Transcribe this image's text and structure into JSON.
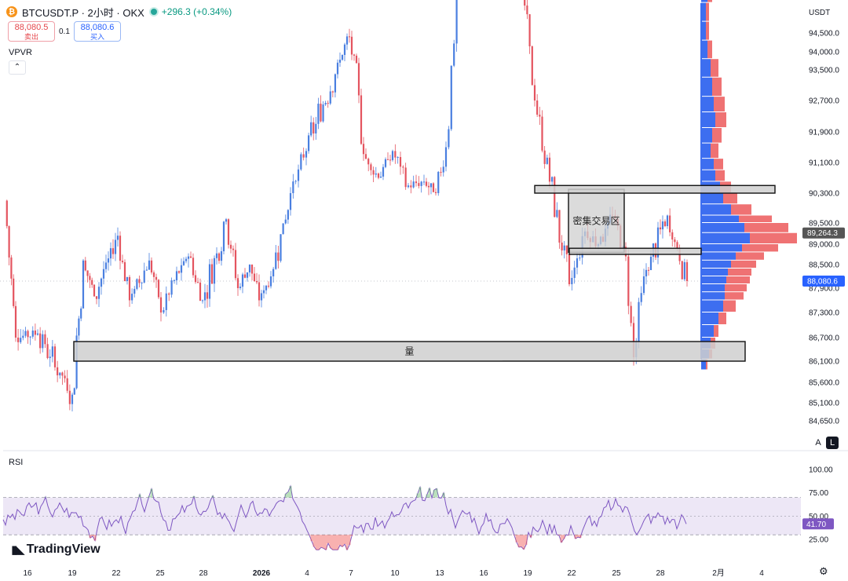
{
  "header": {
    "symbol": "BTCUSDT.P · 2小时 · OKX",
    "change": "+296.3 (+0.34%)",
    "sell_price": "88,080.5",
    "sell_label": "卖出",
    "spread": "0.1",
    "buy_price": "88,080.6",
    "buy_label": "买入",
    "coin_icon": "bitcoin-icon"
  },
  "indicator_label": "VPVR",
  "rsi_label": "RSI",
  "currency": "USDT",
  "brand": "TradingView",
  "scale_buttons": {
    "auto": "A",
    "log": "L"
  },
  "colors": {
    "bull": "#4a7fe0",
    "bear": "#e4545f",
    "vp_up": "#3d6ef0",
    "vp_down": "#ef7273",
    "rsi_line": "#7e57c2",
    "rsi_band": "#ede7f6",
    "zone_fill": "#cfcfcf"
  },
  "chart_data": [
    {
      "type": "candlestick",
      "title": "BTCUSDT.P · 2小时 · OKX",
      "ylabel": "USDT",
      "ylim": [
        84350,
        96900
      ],
      "y_ticks": [
        84650,
        85100,
        85600,
        86100,
        86700,
        87300,
        87900,
        88500,
        89000,
        89500,
        90300,
        91100,
        91900,
        92700,
        93500,
        94000,
        94500
      ],
      "x_ticks": [
        "16",
        "19",
        "22",
        "25",
        "28",
        "2026",
        "4",
        "7",
        "10",
        "13",
        "16",
        "19",
        "22",
        "25",
        "28",
        "2月",
        "4"
      ],
      "last_price": {
        "value": 88080.6,
        "label": "88,080.6"
      },
      "poc_price": {
        "value": 89264.3,
        "label": "89,264.3"
      },
      "path": [
        {
          "x": "16",
          "y": 90100
        },
        {
          "x": "17",
          "y": 86700
        },
        {
          "x": "18",
          "y": 86800
        },
        {
          "x": "19",
          "y": 85300
        },
        {
          "x": "20",
          "y": 88600
        },
        {
          "x": "21",
          "y": 87700
        },
        {
          "x": "22",
          "y": 89200
        },
        {
          "x": "23",
          "y": 87600
        },
        {
          "x": "24",
          "y": 88600
        },
        {
          "x": "25",
          "y": 87300
        },
        {
          "x": "26",
          "y": 88100
        },
        {
          "x": "27",
          "y": 88700
        },
        {
          "x": "28",
          "y": 87600
        },
        {
          "x": "29",
          "y": 89600
        },
        {
          "x": "30",
          "y": 87900
        },
        {
          "x": "31",
          "y": 88500
        },
        {
          "x": "2026",
          "y": 87600
        },
        {
          "x": "2",
          "y": 88200
        },
        {
          "x": "3",
          "y": 90300
        },
        {
          "x": "4",
          "y": 91400
        },
        {
          "x": "5",
          "y": 93700
        },
        {
          "x": "6",
          "y": 94400
        },
        {
          "x": "7",
          "y": 91200
        },
        {
          "x": "8",
          "y": 90700
        },
        {
          "x": "9",
          "y": 91400
        },
        {
          "x": "10",
          "y": 90500
        },
        {
          "x": "11",
          "y": 90600
        },
        {
          "x": "12",
          "y": 90300
        },
        {
          "x": "13",
          "y": 91500
        },
        {
          "x": "14",
          "y": 96500
        },
        {
          "x": "15",
          "y": 96600
        },
        {
          "x": "16b",
          "y": 96400
        },
        {
          "x": "17b",
          "y": 96100
        },
        {
          "x": "18b",
          "y": 95700
        },
        {
          "x": "19b",
          "y": 92700
        },
        {
          "x": "20b",
          "y": 90600
        },
        {
          "x": "21b",
          "y": 88000
        },
        {
          "x": "22b",
          "y": 89300
        },
        {
          "x": "23b",
          "y": 89000
        },
        {
          "x": "24b",
          "y": 89700
        },
        {
          "x": "25b",
          "y": 88700
        },
        {
          "x": "26b",
          "y": 86200
        },
        {
          "x": "27b",
          "y": 88200
        },
        {
          "x": "28b",
          "y": 89700
        },
        {
          "x": "29b",
          "y": 88080
        }
      ],
      "annotations": [
        {
          "label": "密集交易区",
          "y_range": [
            88800,
            90400
          ],
          "x_range": [
            "22b",
            "25b"
          ]
        },
        {
          "label": "",
          "y_range": [
            90300,
            90500
          ],
          "x_range": [
            "20b",
            "2月"
          ]
        },
        {
          "label": "",
          "y_range": [
            88750,
            88900
          ],
          "x_range": [
            "22b",
            "28b"
          ]
        },
        {
          "label": "量",
          "y_range": [
            86100,
            86600
          ],
          "x_range": [
            "19",
            "2月"
          ]
        }
      ],
      "volume_profile": {
        "price_bins": [
          96600,
          96350,
          95800,
          95300,
          94800,
          94300,
          93800,
          93300,
          92800,
          92400,
          92000,
          91600,
          91200,
          90900,
          90600,
          90300,
          90000,
          89700,
          89500,
          89264,
          89000,
          88800,
          88600,
          88400,
          88200,
          88000,
          87800,
          87600,
          87300,
          87000,
          86700,
          86400,
          86150
        ],
        "up": [
          22,
          18,
          8,
          6,
          6,
          8,
          12,
          14,
          16,
          18,
          14,
          12,
          16,
          18,
          24,
          28,
          38,
          48,
          55,
          62,
          52,
          44,
          38,
          34,
          32,
          30,
          30,
          28,
          22,
          16,
          12,
          10,
          6
        ],
        "down": [
          18,
          10,
          6,
          4,
          4,
          6,
          10,
          12,
          14,
          14,
          12,
          10,
          12,
          12,
          14,
          18,
          26,
          42,
          56,
          60,
          46,
          36,
          32,
          30,
          30,
          28,
          24,
          16,
          10,
          6,
          6,
          4,
          2
        ]
      }
    },
    {
      "type": "line",
      "title": "RSI",
      "ylim": [
        10,
        105
      ],
      "y_ticks": [
        25,
        50,
        75,
        100
      ],
      "band": [
        30,
        70
      ],
      "midline": 50,
      "last_value": {
        "value": 41.7,
        "label": "41.70"
      }
    }
  ]
}
